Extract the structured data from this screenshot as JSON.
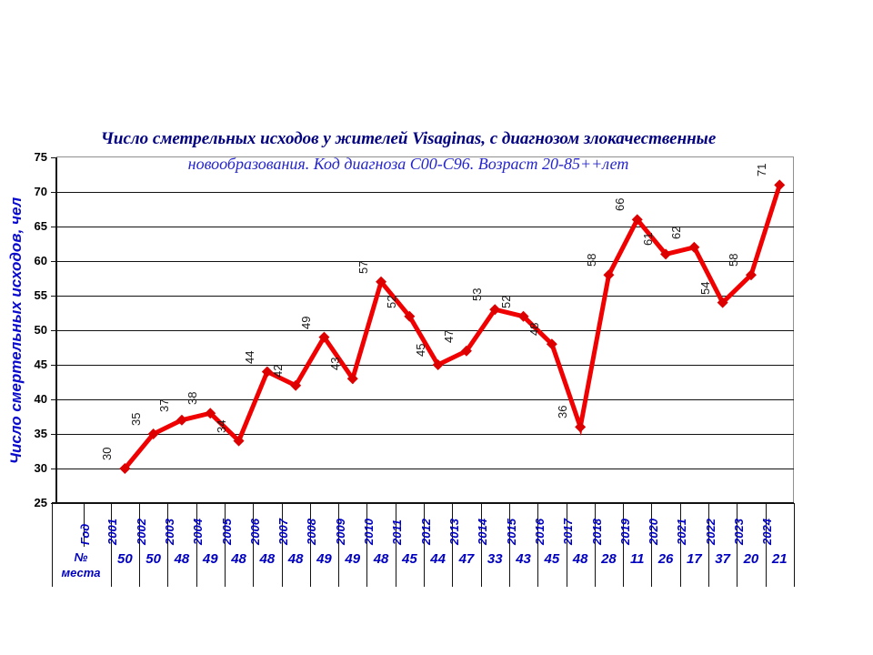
{
  "title": {
    "line1": "Число сметрельных исходов у жителей  Visaginas, с диагнозом злокачественные",
    "line2": "новообразования. Код диагноза C00-C96. Возраст 20-85++лет"
  },
  "y_axis": {
    "title": "Число смертельных исходов, чел",
    "min": 25,
    "max": 75,
    "tick_step": 5,
    "yticks": [
      25,
      30,
      35,
      40,
      45,
      50,
      55,
      60,
      65,
      70,
      75
    ]
  },
  "table": {
    "year_header": "Год",
    "row_label_top": "№",
    "row_label_bottom": "места"
  },
  "colors": {
    "line": "#f00000",
    "marker": "#dd0000",
    "title1": "#000080",
    "title2": "#2626cc",
    "axis_title_text": "#0a0acd",
    "table_text": "#0000c0",
    "data_label_text": "#1a1a1a",
    "grid": "#111111",
    "plot_border": "#909090"
  },
  "chart_data": {
    "type": "line",
    "title": "Число сметрельных исходов у жителей Visaginas, с диагнозом злокачественные новообразования. Код диагноза C00-C96. Возраст 20-85++лет",
    "categories": [
      "2001",
      "2002",
      "2003",
      "2004",
      "2005",
      "2006",
      "2007",
      "2008",
      "2009",
      "2010",
      "2011",
      "2012",
      "2013",
      "2014",
      "2015",
      "2016",
      "2017",
      "2018",
      "2019",
      "2020",
      "2021",
      "2022",
      "2023",
      "2024"
    ],
    "series": [
      {
        "name": "Число смертельных исходов, чел",
        "values": [
          30,
          35,
          37,
          38,
          34,
          44,
          42,
          49,
          43,
          57,
          52,
          45,
          47,
          53,
          52,
          48,
          36,
          58,
          66,
          61,
          62,
          54,
          58,
          71
        ]
      }
    ],
    "table_rows": [
      {
        "label": "№ места",
        "values": [
          50,
          50,
          48,
          49,
          48,
          48,
          48,
          49,
          49,
          48,
          45,
          44,
          47,
          33,
          43,
          45,
          48,
          28,
          11,
          26,
          17,
          37,
          20,
          21
        ]
      }
    ],
    "xlabel": "Год",
    "ylabel": "Число смертельных исходов, чел",
    "ylim": [
      25,
      75
    ],
    "ytick_step": 5,
    "grid": true,
    "legend": "none",
    "marker": "diamond",
    "line_color": "#f00000"
  }
}
